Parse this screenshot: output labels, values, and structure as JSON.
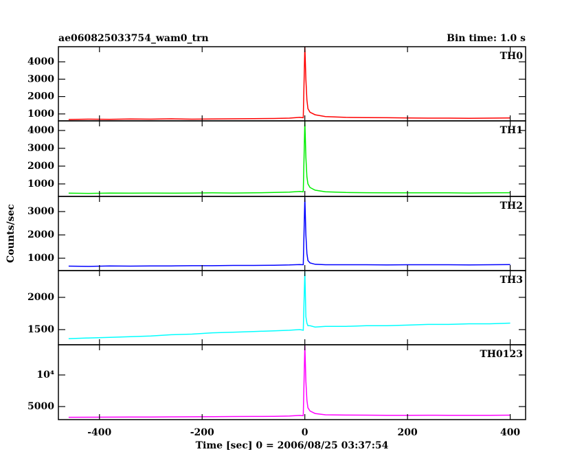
{
  "title": "ae060825033754_wam0_trn",
  "subtitle": "Bin time: 1.0 s",
  "y_label": "Counts/sec",
  "chart_data": [
    {
      "type": "line",
      "x": [
        -460,
        -420,
        -380,
        -340,
        -300,
        -260,
        -220,
        -180,
        -140,
        -100,
        -60,
        -30,
        -10,
        -3,
        0,
        2,
        4,
        6,
        10,
        20,
        40,
        80,
        120,
        160,
        200,
        240,
        280,
        320,
        360,
        400
      ],
      "series": [
        {
          "name": "TH0",
          "color": "#ff0000",
          "values": [
            680,
            700,
            690,
            710,
            700,
            720,
            700,
            710,
            720,
            730,
            740,
            760,
            800,
            780,
            4900,
            3000,
            1800,
            1300,
            1100,
            950,
            850,
            800,
            790,
            780,
            770,
            760,
            760,
            750,
            760,
            770
          ]
        }
      ],
      "xlim": [
        -480,
        430
      ],
      "ylim": [
        600,
        4870
      ],
      "yticks": [
        1000,
        2000,
        3000,
        4000
      ]
    },
    {
      "type": "line",
      "x": [
        -460,
        -420,
        -380,
        -340,
        -300,
        -260,
        -220,
        -180,
        -140,
        -100,
        -60,
        -30,
        -10,
        -3,
        0,
        2,
        4,
        6,
        10,
        20,
        40,
        80,
        120,
        160,
        200,
        240,
        280,
        320,
        360,
        400
      ],
      "series": [
        {
          "name": "TH1",
          "color": "#00ee00",
          "values": [
            480,
            470,
            490,
            480,
            490,
            480,
            490,
            500,
            490,
            500,
            520,
            540,
            580,
            560,
            4500,
            2500,
            1400,
            1000,
            800,
            650,
            560,
            520,
            510,
            500,
            500,
            500,
            500,
            490,
            500,
            510
          ]
        }
      ],
      "xlim": [
        -480,
        430
      ],
      "ylim": [
        300,
        4540
      ],
      "yticks": [
        1000,
        2000,
        3000,
        4000
      ]
    },
    {
      "type": "line",
      "x": [
        -460,
        -420,
        -380,
        -340,
        -300,
        -260,
        -220,
        -180,
        -140,
        -100,
        -60,
        -30,
        -10,
        -3,
        0,
        2,
        4,
        6,
        10,
        20,
        40,
        80,
        120,
        160,
        200,
        240,
        280,
        320,
        360,
        400
      ],
      "series": [
        {
          "name": "TH2",
          "color": "#0000ff",
          "values": [
            660,
            650,
            670,
            660,
            670,
            670,
            680,
            680,
            690,
            690,
            700,
            710,
            730,
            720,
            3600,
            2000,
            1200,
            900,
            800,
            740,
            720,
            720,
            720,
            710,
            720,
            720,
            720,
            710,
            720,
            730
          ]
        }
      ],
      "xlim": [
        -480,
        430
      ],
      "ylim": [
        470,
        3650
      ],
      "yticks": [
        1000,
        2000,
        3000
      ]
    },
    {
      "type": "line",
      "x": [
        -460,
        -420,
        -380,
        -340,
        -300,
        -260,
        -220,
        -180,
        -140,
        -100,
        -60,
        -30,
        -10,
        -3,
        0,
        2,
        4,
        6,
        10,
        20,
        40,
        80,
        120,
        160,
        200,
        240,
        280,
        320,
        360,
        400
      ],
      "series": [
        {
          "name": "TH3",
          "color": "#00ffff",
          "values": [
            1360,
            1370,
            1380,
            1390,
            1400,
            1420,
            1430,
            1450,
            1460,
            1470,
            1480,
            1490,
            1500,
            1490,
            2400,
            1700,
            1600,
            1560,
            1560,
            1540,
            1550,
            1550,
            1560,
            1560,
            1570,
            1580,
            1580,
            1590,
            1590,
            1600
          ]
        }
      ],
      "xlim": [
        -480,
        430
      ],
      "ylim": [
        1265,
        2415
      ],
      "yticks": [
        1500,
        2000
      ]
    },
    {
      "type": "line",
      "x": [
        -460,
        -420,
        -380,
        -340,
        -300,
        -260,
        -220,
        -180,
        -140,
        -100,
        -60,
        -30,
        -10,
        -3,
        0,
        2,
        4,
        6,
        10,
        20,
        40,
        80,
        120,
        160,
        200,
        240,
        280,
        320,
        360,
        400
      ],
      "series": [
        {
          "name": "TH0123",
          "color": "#ff00ff",
          "values": [
            3300,
            3320,
            3330,
            3340,
            3350,
            3370,
            3380,
            3400,
            3420,
            3430,
            3450,
            3500,
            3600,
            3550,
            14700,
            9000,
            6000,
            4800,
            4300,
            3900,
            3700,
            3650,
            3640,
            3620,
            3620,
            3630,
            3620,
            3610,
            3620,
            3640
          ]
        }
      ],
      "xlim": [
        -480,
        430
      ],
      "ylim": [
        2935,
        14780
      ],
      "yticks": [
        5000,
        {
          "value": 10000,
          "label": "10⁴"
        }
      ],
      "xticks": [
        -400,
        -200,
        0,
        200,
        400
      ],
      "xlabel": "Time [sec] 0 = 2006/08/25 03:37:54"
    }
  ]
}
